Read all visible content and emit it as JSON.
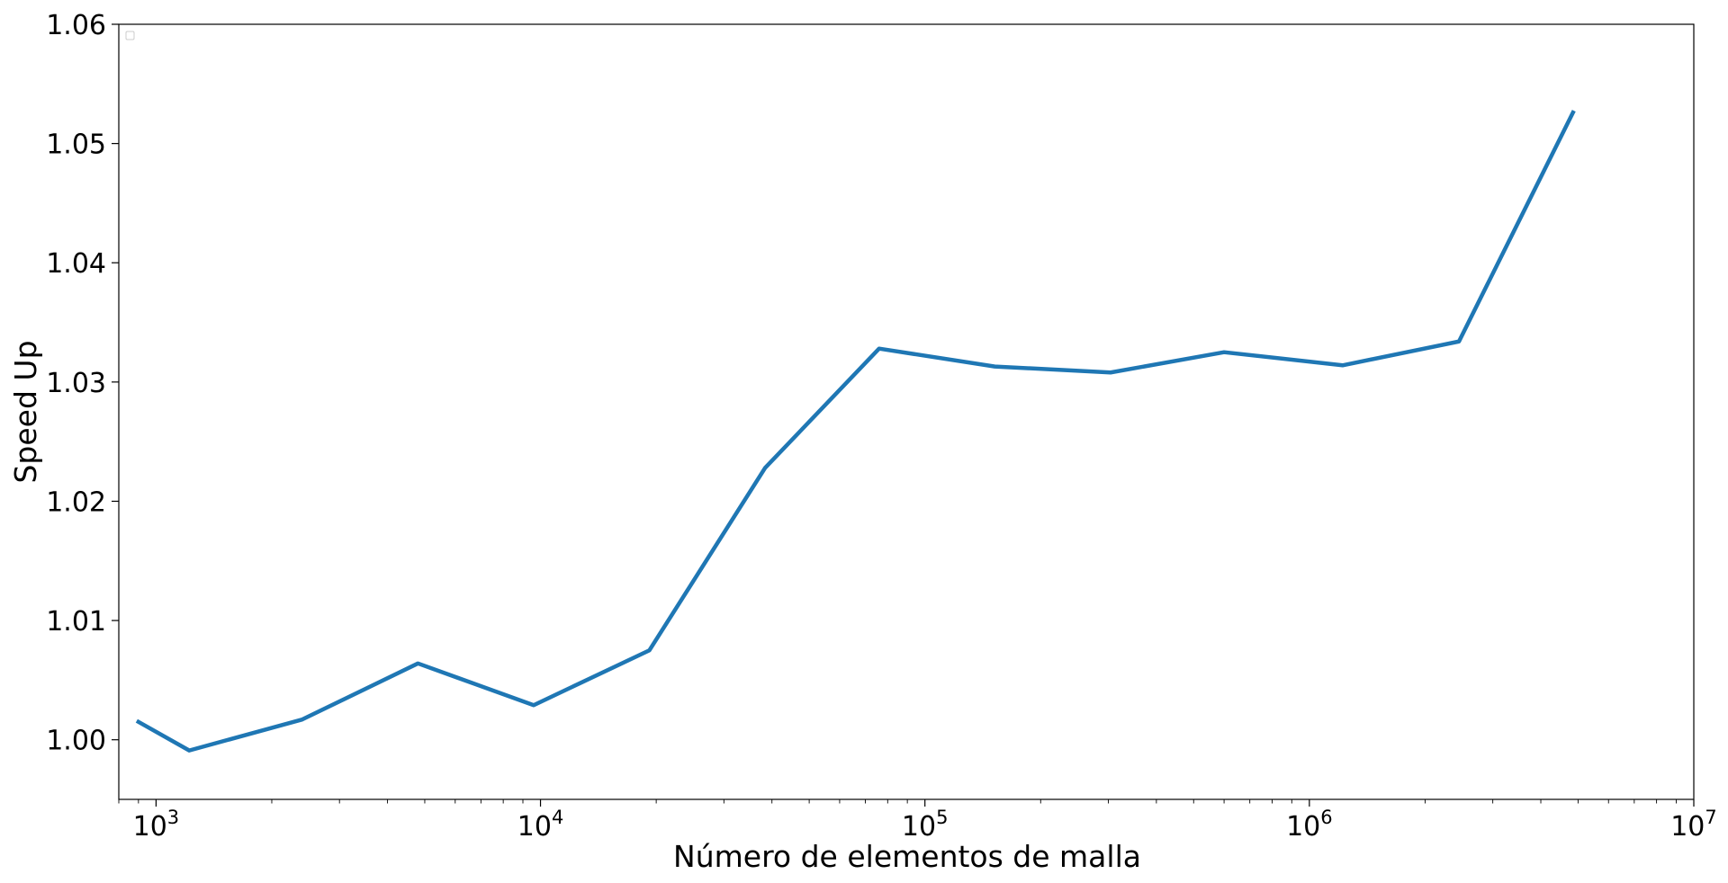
{
  "chart_data": {
    "type": "line",
    "title": "",
    "xlabel": "Número de elementos de malla",
    "ylabel": "Speed Up",
    "xscale": "log",
    "xlim": [
      800,
      10000000
    ],
    "ylim": [
      0.995,
      1.06
    ],
    "grid": false,
    "legend": "top-left (empty)",
    "x_ticks": [
      {
        "base": "10",
        "exp": "3",
        "value": 1000
      },
      {
        "base": "10",
        "exp": "4",
        "value": 10000
      },
      {
        "base": "10",
        "exp": "5",
        "value": 100000
      },
      {
        "base": "10",
        "exp": "6",
        "value": 1000000
      },
      {
        "base": "10",
        "exp": "7",
        "value": 10000000
      }
    ],
    "y_ticks": [
      {
        "label": "1.00",
        "value": 1.0
      },
      {
        "label": "1.01",
        "value": 1.01
      },
      {
        "label": "1.02",
        "value": 1.02
      },
      {
        "label": "1.03",
        "value": 1.03
      },
      {
        "label": "1.04",
        "value": 1.04
      },
      {
        "label": "1.05",
        "value": 1.05
      },
      {
        "label": "1.06",
        "value": 1.06
      }
    ],
    "series": [
      {
        "color": "#1f77b4",
        "x": [
          900,
          1220,
          2400,
          4800,
          9600,
          19200,
          38400,
          76000,
          152000,
          304000,
          600000,
          1220000,
          2450000,
          4850000
        ],
        "y": [
          1.0015,
          0.9991,
          1.0017,
          1.0064,
          1.0029,
          1.0075,
          1.0228,
          1.0328,
          1.0313,
          1.0308,
          1.0325,
          1.0314,
          1.0334,
          1.0526
        ]
      }
    ]
  }
}
